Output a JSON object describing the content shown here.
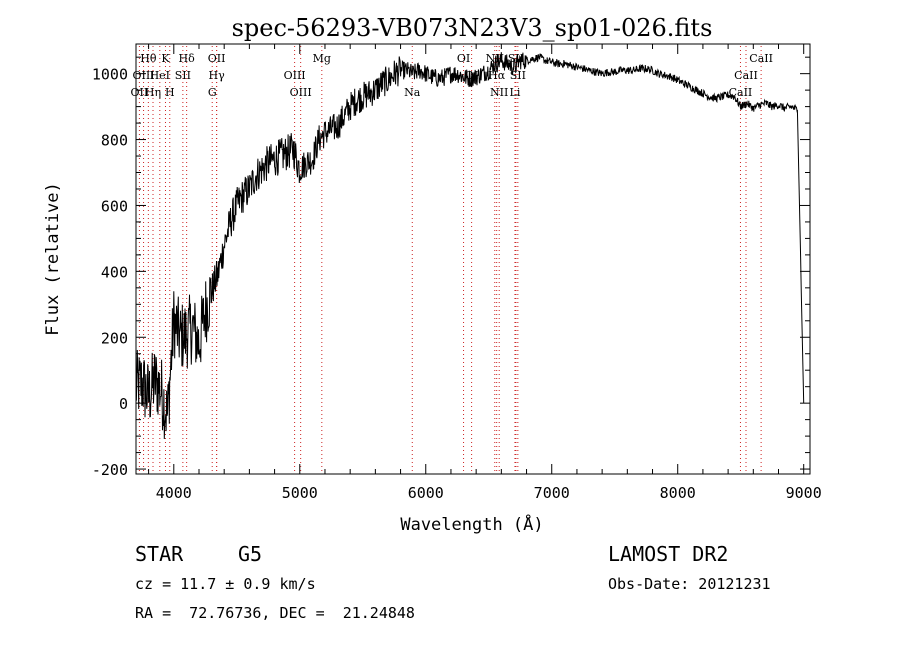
{
  "chart_data": {
    "type": "line",
    "title": "spec-56293-VB073N23V3_sp01-026.fits",
    "xlabel": "Wavelength (Å)",
    "ylabel": "Flux (relative)",
    "xlim": [
      3700,
      9050
    ],
    "ylim": [
      -215,
      1090
    ],
    "x_ticks": [
      4000,
      5000,
      6000,
      7000,
      8000,
      9000
    ],
    "y_ticks": [
      -200,
      0,
      200,
      400,
      600,
      800,
      1000
    ],
    "grid": false,
    "line_color": "#000000",
    "marker_color": "#cc2222",
    "series": [
      {
        "x": [
          3700,
          3750,
          3800,
          3850,
          3900,
          3950,
          4000,
          4050,
          4100,
          4150,
          4200,
          4250,
          4300,
          4350,
          4400,
          4450,
          4500,
          4550,
          4600,
          4650,
          4700,
          4750,
          4800,
          4850,
          4900,
          4950,
          5000,
          5050,
          5100,
          5150,
          5200,
          5250,
          5300,
          5350,
          5400,
          5450,
          5500,
          5550,
          5600,
          5650,
          5700,
          5750,
          5800,
          5850,
          5900,
          5950,
          6000,
          6050,
          6100,
          6150,
          6200,
          6250,
          6300,
          6350,
          6400,
          6450,
          6500,
          6550,
          6600,
          6650,
          6700,
          6750,
          6800,
          6850,
          6900,
          6950,
          7000,
          7050,
          7100,
          7150,
          7200,
          7250,
          7300,
          7350,
          7400,
          7450,
          7500,
          7550,
          7600,
          7650,
          7700,
          7750,
          7800,
          7850,
          7900,
          7950,
          8000,
          8050,
          8100,
          8150,
          8200,
          8250,
          8300,
          8350,
          8400,
          8450,
          8500,
          8550,
          8600,
          8650,
          8700,
          8750,
          8800,
          8850,
          8900,
          8950,
          9000
        ],
        "y": [
          50,
          60,
          20,
          70,
          40,
          -40,
          250,
          200,
          210,
          230,
          180,
          280,
          340,
          390,
          480,
          550,
          600,
          630,
          650,
          690,
          710,
          730,
          740,
          750,
          760,
          770,
          710,
          730,
          740,
          800,
          820,
          830,
          840,
          870,
          900,
          920,
          930,
          940,
          950,
          970,
          980,
          1000,
          1010,
          1010,
          1000,
          1010,
          1000,
          990,
          985,
          990,
          1000,
          1000,
          990,
          985,
          990,
          1000,
          1010,
          1030,
          1040,
          1030,
          1020,
          1040,
          1040,
          1045,
          1050,
          1040,
          1035,
          1030,
          1030,
          1025,
          1020,
          1015,
          1010,
          1005,
          1000,
          1005,
          1005,
          1010,
          1010,
          1010,
          1015,
          1015,
          1010,
          1000,
          995,
          990,
          980,
          970,
          960,
          950,
          940,
          930,
          925,
          930,
          935,
          930,
          900,
          910,
          895,
          905,
          910,
          900,
          905,
          895,
          900,
          890,
          0
        ]
      }
    ],
    "line_markers": [
      {
        "label": "Hθ",
        "x": 3798,
        "row": 1
      },
      {
        "label": "K",
        "x": 3934,
        "row": 1
      },
      {
        "label": "Hδ",
        "x": 4102,
        "row": 1
      },
      {
        "label": "OII",
        "x": 4340,
        "row": 1
      },
      {
        "label": "Mg",
        "x": 5175,
        "row": 1
      },
      {
        "label": "OI",
        "x": 6300,
        "row": 1
      },
      {
        "label": "NII",
        "x": 6548,
        "row": 1
      },
      {
        "label": "SII",
        "x": 6716,
        "row": 1
      },
      {
        "label": "CaII",
        "x": 8662,
        "row": 1
      },
      {
        "label": "OIII",
        "x": 3760,
        "row": 2
      },
      {
        "label": "HeI",
        "x": 3889,
        "row": 2
      },
      {
        "label": "SII",
        "x": 4072,
        "row": 2
      },
      {
        "label": "Hγ",
        "x": 4340,
        "row": 2
      },
      {
        "label": "OIII",
        "x": 4959,
        "row": 2
      },
      {
        "label": "OI",
        "x": 6364,
        "row": 2
      },
      {
        "label": "Hα",
        "x": 6563,
        "row": 2
      },
      {
        "label": "SII",
        "x": 6731,
        "row": 2
      },
      {
        "label": "CaII",
        "x": 8542,
        "row": 2
      },
      {
        "label": "OII",
        "x": 3727,
        "row": 3
      },
      {
        "label": "Hη",
        "x": 3835,
        "row": 3
      },
      {
        "label": "H",
        "x": 3968,
        "row": 3
      },
      {
        "label": "G",
        "x": 4305,
        "row": 3
      },
      {
        "label": "OIII",
        "x": 5007,
        "row": 3
      },
      {
        "label": "Na",
        "x": 5893,
        "row": 3
      },
      {
        "label": "NII",
        "x": 6583,
        "row": 3
      },
      {
        "label": "Li",
        "x": 6708,
        "row": 3
      },
      {
        "label": "CaII",
        "x": 8498,
        "row": 3
      }
    ]
  },
  "info": {
    "class_label": "STAR",
    "subclass_label": "G5",
    "survey": "LAMOST DR2",
    "cz": "cz = 11.7 ± 0.9 km/s",
    "obs_date": "Obs-Date: 20121231",
    "radec": "RA =  72.76736, DEC =  21.24848"
  }
}
